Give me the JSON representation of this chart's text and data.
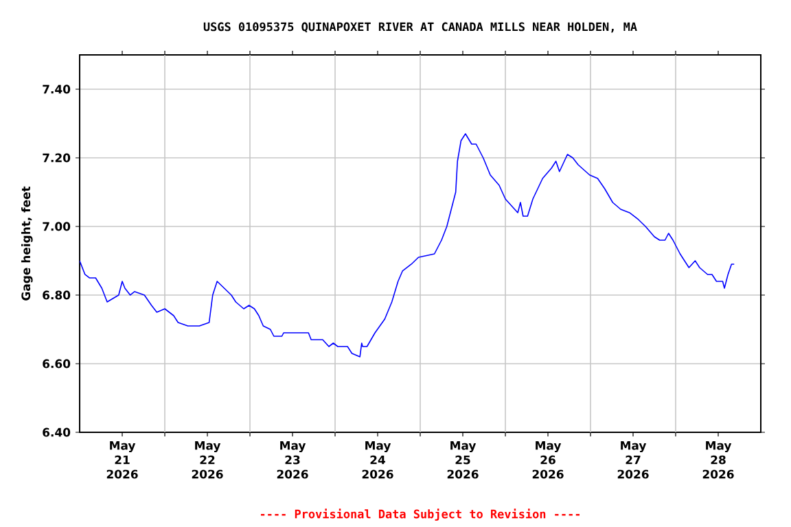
{
  "chart_data": {
    "type": "line",
    "title": "USGS 01095375 QUINAPOXET RIVER AT CANADA MILLS NEAR HOLDEN, MA",
    "ylabel": "Gage height, feet",
    "annotations": [
      "---- Provisional Data Subject to Revision ----"
    ],
    "xlim": [
      "2026-05-21T00:00",
      "2026-05-29T00:00"
    ],
    "xticks": [
      {
        "value": "2026-05-21T12:00",
        "label": "May 21 2026"
      },
      {
        "value": "2026-05-22T00:00",
        "label": null
      },
      {
        "value": "2026-05-22T12:00",
        "label": "May 22 2026"
      },
      {
        "value": "2026-05-23T00:00",
        "label": null
      },
      {
        "value": "2026-05-23T12:00",
        "label": "May 23 2026"
      },
      {
        "value": "2026-05-24T00:00",
        "label": null
      },
      {
        "value": "2026-05-24T12:00",
        "label": "May 24 2026"
      },
      {
        "value": "2026-05-25T00:00",
        "label": null
      },
      {
        "value": "2026-05-25T12:00",
        "label": "May 25 2026"
      },
      {
        "value": "2026-05-26T00:00",
        "label": null
      },
      {
        "value": "2026-05-26T12:00",
        "label": "May 26 2026"
      },
      {
        "value": "2026-05-27T00:00",
        "label": null
      },
      {
        "value": "2026-05-27T12:00",
        "label": "May 27 2026"
      },
      {
        "value": "2026-05-28T00:00",
        "label": null
      },
      {
        "value": "2026-05-28T12:00",
        "label": "May 28 2026"
      }
    ],
    "ylim": [
      6.4,
      7.5
    ],
    "yticks": [
      {
        "value": 6.4,
        "label": "6.40"
      },
      {
        "value": 6.6,
        "label": "6.60"
      },
      {
        "value": 6.8,
        "label": "6.80"
      },
      {
        "value": 7.0,
        "label": "7.00"
      },
      {
        "value": 7.2,
        "label": "7.20"
      },
      {
        "value": 7.4,
        "label": "7.40"
      }
    ],
    "grid": true,
    "series": [
      {
        "color": "#0000ff",
        "x": [
          "2026-05-21T00:00",
          "2026-05-21T01:30",
          "2026-05-21T02:45",
          "2026-05-21T04:30",
          "2026-05-21T06:15",
          "2026-05-21T07:45",
          "2026-05-21T11:00",
          "2026-05-21T12:00",
          "2026-05-21T12:45",
          "2026-05-21T14:15",
          "2026-05-21T15:30",
          "2026-05-21T18:15",
          "2026-05-21T20:15",
          "2026-05-21T21:45",
          "2026-05-22T00:00",
          "2026-05-22T02:30",
          "2026-05-22T03:45",
          "2026-05-22T06:30",
          "2026-05-22T09:45",
          "2026-05-22T12:30",
          "2026-05-22T13:30",
          "2026-05-22T14:45",
          "2026-05-22T16:45",
          "2026-05-22T18:45",
          "2026-05-22T20:00",
          "2026-05-22T22:15",
          "2026-05-22T23:45",
          "2026-05-23T01:15",
          "2026-05-23T02:30",
          "2026-05-23T03:45",
          "2026-05-23T05:45",
          "2026-05-23T06:45",
          "2026-05-23T09:00",
          "2026-05-23T09:30",
          "2026-05-23T16:30",
          "2026-05-23T17:15",
          "2026-05-23T20:30",
          "2026-05-23T22:15",
          "2026-05-23T23:30",
          "2026-05-24T00:45",
          "2026-05-24T03:30",
          "2026-05-24T04:45",
          "2026-05-24T07:00",
          "2026-05-24T07:30",
          "2026-05-24T07:45",
          "2026-05-24T09:00",
          "2026-05-24T11:15",
          "2026-05-24T14:00",
          "2026-05-24T16:00",
          "2026-05-24T17:45",
          "2026-05-24T19:00",
          "2026-05-24T21:30",
          "2026-05-24T23:30",
          "2026-05-25T04:00",
          "2026-05-25T06:00",
          "2026-05-25T07:30",
          "2026-05-25T08:30",
          "2026-05-25T10:00",
          "2026-05-25T10:30",
          "2026-05-25T11:30",
          "2026-05-25T12:45",
          "2026-05-25T14:30",
          "2026-05-25T15:45",
          "2026-05-25T17:45",
          "2026-05-25T19:45",
          "2026-05-25T22:15",
          "2026-05-26T00:00",
          "2026-05-26T01:45",
          "2026-05-26T03:30",
          "2026-05-26T04:15",
          "2026-05-26T05:00",
          "2026-05-26T06:15",
          "2026-05-26T07:45",
          "2026-05-26T10:30",
          "2026-05-26T13:00",
          "2026-05-26T14:15",
          "2026-05-26T15:15",
          "2026-05-26T17:30",
          "2026-05-26T19:00",
          "2026-05-26T20:30",
          "2026-05-26T23:45",
          "2026-05-27T02:00",
          "2026-05-27T04:00",
          "2026-05-27T06:15",
          "2026-05-27T08:30",
          "2026-05-27T11:00",
          "2026-05-27T13:30",
          "2026-05-27T15:30",
          "2026-05-27T18:00",
          "2026-05-27T19:30",
          "2026-05-27T21:00",
          "2026-05-27T22:00",
          "2026-05-27T23:15",
          "2026-05-28T01:15",
          "2026-05-28T02:30",
          "2026-05-28T03:45",
          "2026-05-28T05:30",
          "2026-05-28T06:45",
          "2026-05-28T09:00",
          "2026-05-28T10:15",
          "2026-05-28T11:30",
          "2026-05-28T13:15",
          "2026-05-28T13:45",
          "2026-05-28T14:45",
          "2026-05-28T15:45",
          "2026-05-28T16:30"
        ],
        "values": [
          6.9,
          6.86,
          6.85,
          6.85,
          6.82,
          6.78,
          6.8,
          6.84,
          6.82,
          6.8,
          6.81,
          6.8,
          6.77,
          6.75,
          6.76,
          6.74,
          6.72,
          6.71,
          6.71,
          6.72,
          6.8,
          6.84,
          6.82,
          6.8,
          6.78,
          6.76,
          6.77,
          6.76,
          6.74,
          6.71,
          6.7,
          6.68,
          6.68,
          6.69,
          6.69,
          6.67,
          6.67,
          6.65,
          6.66,
          6.65,
          6.65,
          6.63,
          6.62,
          6.66,
          6.65,
          6.65,
          6.69,
          6.73,
          6.78,
          6.84,
          6.87,
          6.89,
          6.91,
          6.92,
          6.96,
          7.0,
          7.04,
          7.1,
          7.19,
          7.25,
          7.27,
          7.24,
          7.24,
          7.2,
          7.15,
          7.12,
          7.08,
          7.06,
          7.04,
          7.07,
          7.03,
          7.03,
          7.08,
          7.14,
          7.17,
          7.19,
          7.16,
          7.21,
          7.2,
          7.18,
          7.15,
          7.14,
          7.11,
          7.07,
          7.05,
          7.04,
          7.02,
          7.0,
          6.97,
          6.96,
          6.96,
          6.98,
          6.96,
          6.92,
          6.9,
          6.88,
          6.9,
          6.88,
          6.86,
          6.86,
          6.84,
          6.84,
          6.82,
          6.86,
          6.89,
          6.89
        ]
      }
    ]
  }
}
